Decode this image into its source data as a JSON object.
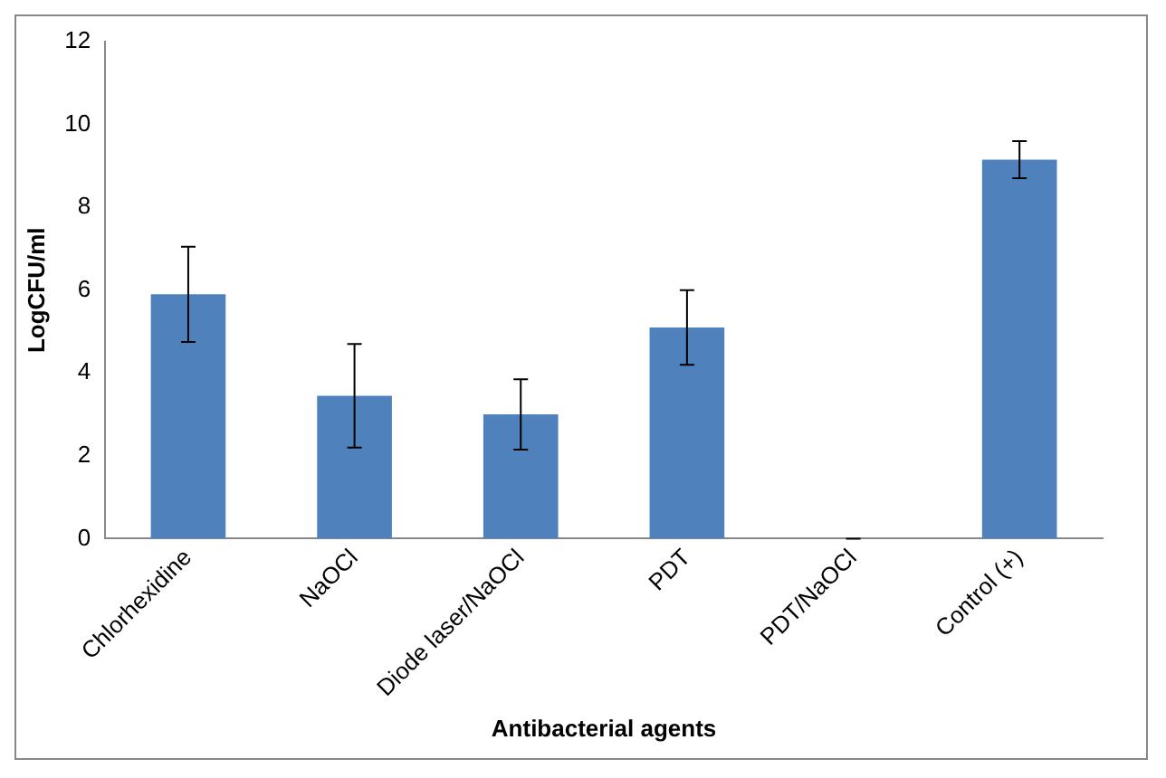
{
  "chart_data": {
    "type": "bar",
    "xlabel": "Antibacterial agents",
    "ylabel": "LogCFU/ml",
    "categories": [
      "Chlorhexidine",
      "NaOCl",
      "Diode laser/NaOCl",
      "PDT",
      "PDT/NaOCl",
      "Control (+)"
    ],
    "values": [
      5.9,
      3.45,
      3.0,
      5.1,
      0,
      9.15
    ],
    "errors": [
      1.15,
      1.25,
      0.85,
      0.9,
      0,
      0.45
    ],
    "color": "#4f81bd",
    "ylim": [
      0,
      12
    ],
    "yticks": [
      0,
      2,
      4,
      6,
      8,
      10,
      12
    ],
    "grid": false,
    "legend": false
  }
}
